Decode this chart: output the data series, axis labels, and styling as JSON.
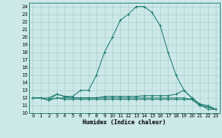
{
  "title": "",
  "xlabel": "Humidex (Indice chaleur)",
  "ylabel": "",
  "background_color": "#cce8e8",
  "line_color": "#1a7a6e",
  "grid_color": "#aacccc",
  "x_values": [
    0,
    1,
    2,
    3,
    4,
    5,
    6,
    7,
    8,
    9,
    10,
    11,
    12,
    13,
    14,
    15,
    16,
    17,
    18,
    19,
    20,
    21,
    22,
    23
  ],
  "series": [
    [
      12.0,
      12.0,
      12.0,
      12.5,
      12.2,
      12.2,
      13.0,
      13.0,
      15.0,
      18.0,
      20.0,
      22.2,
      23.0,
      24.0,
      24.0,
      23.2,
      21.5,
      18.0,
      15.0,
      13.0,
      12.0,
      11.2,
      10.5,
      10.5
    ],
    [
      12.0,
      12.0,
      11.7,
      12.5,
      12.2,
      12.0,
      12.0,
      12.0,
      12.0,
      12.2,
      12.2,
      12.2,
      12.2,
      12.2,
      12.3,
      12.3,
      12.3,
      12.3,
      12.5,
      13.0,
      12.0,
      11.2,
      11.0,
      10.5
    ],
    [
      12.0,
      12.0,
      11.7,
      12.0,
      11.8,
      11.8,
      11.8,
      11.8,
      11.8,
      11.8,
      11.8,
      11.8,
      11.8,
      11.8,
      11.8,
      11.8,
      11.8,
      11.8,
      11.8,
      11.8,
      11.8,
      11.0,
      10.8,
      10.5
    ],
    [
      12.0,
      12.0,
      11.7,
      12.0,
      12.0,
      12.0,
      12.0,
      12.0,
      12.0,
      12.0,
      12.0,
      12.0,
      12.0,
      12.0,
      12.0,
      12.0,
      12.0,
      12.0,
      12.0,
      12.0,
      11.8,
      11.0,
      10.8,
      10.5
    ]
  ],
  "ylim": [
    10,
    24.5
  ],
  "xlim": [
    -0.5,
    23.5
  ],
  "yticks": [
    10,
    11,
    12,
    13,
    14,
    15,
    16,
    17,
    18,
    19,
    20,
    21,
    22,
    23,
    24
  ],
  "xticks": [
    0,
    1,
    2,
    3,
    4,
    5,
    6,
    7,
    8,
    9,
    10,
    11,
    12,
    13,
    14,
    15,
    16,
    17,
    18,
    19,
    20,
    21,
    22,
    23
  ],
  "marker": "+",
  "tick_fontsize": 5.0,
  "xlabel_fontsize": 6.0
}
